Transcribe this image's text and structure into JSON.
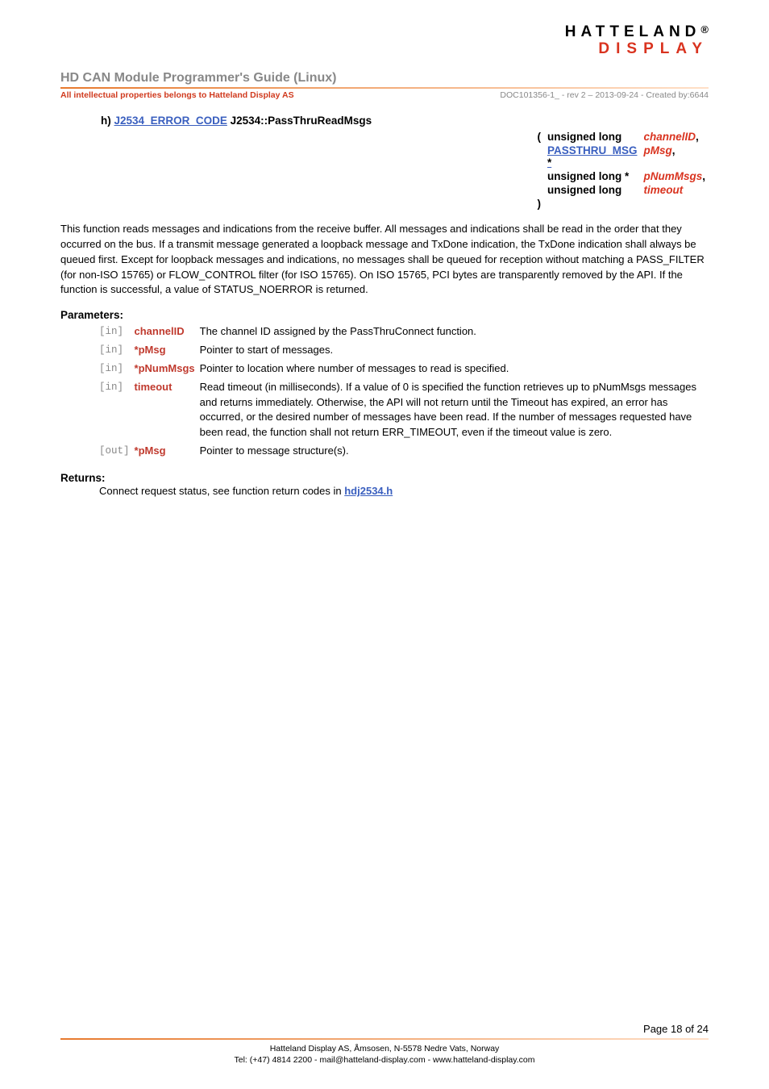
{
  "logo": {
    "line1": "HATTELAND",
    "reg": "®",
    "line2": "DISPLAY",
    "line2_color": "#d9331f"
  },
  "header": {
    "title": "HD CAN Module Programmer's Guide (Linux)",
    "title_color": "#888888",
    "sub_left": "All intellectual properties  belongs to Hatteland Display AS",
    "sub_left_color": "#d03a1e",
    "sub_right": "DOC101356-1_ - rev 2 – 2013-09-24 - Created by:6644",
    "sub_right_color": "#888888"
  },
  "signature": {
    "bullet": "h)",
    "return_type": "J2534_ERROR_CODE",
    "return_type_color": "#3a5fbf",
    "fn_name": "J2534::PassThruReadMsgs",
    "open": "(",
    "close": ")",
    "rows": [
      {
        "type": "unsigned long",
        "type_link": false,
        "type_color": "#000",
        "arg": "channelID",
        "arg_color": "#d9331f",
        "suffix": ","
      },
      {
        "type": "PASSTHRU_MSG *",
        "type_link": true,
        "type_color": "#3a5fbf",
        "arg": "pMsg",
        "arg_color": "#d9331f",
        "suffix": ","
      },
      {
        "type": "unsigned long *",
        "type_link": false,
        "type_color": "#000",
        "arg": "pNumMsgs",
        "arg_color": "#d9331f",
        "suffix": ","
      },
      {
        "type": "unsigned long",
        "type_link": false,
        "type_color": "#000",
        "arg": "timeout",
        "arg_color": "#d9331f",
        "suffix": ""
      }
    ]
  },
  "description": "This function reads messages and indications from the receive buffer. All messages and indications shall be read in the order that they occurred on the bus. If a transmit message generated a loopback message and TxDone indication, the TxDone indication shall always be queued first. Except for loopback messages and indications, no messages shall be queued for reception without matching a PASS_FILTER (for non-ISO 15765) or FLOW_CONTROL filter (for ISO 15765). On ISO 15765, PCI bytes are transparently removed by the API. If the function is successful, a value of STATUS_NOERROR is returned.",
  "params_heading": "Parameters:",
  "param_name_color": "#c03a2e",
  "params": [
    {
      "dir": "[in]",
      "name": "channelID",
      "desc": "The channel ID assigned by the PassThruConnect function."
    },
    {
      "dir": "[in]",
      "name": "*pMsg",
      "desc": "Pointer to start of messages."
    },
    {
      "dir": "[in]",
      "name": "*pNumMsgs",
      "desc": "Pointer to location where number of messages to read is specified."
    },
    {
      "dir": "[in]",
      "name": "timeout",
      "desc": "Read timeout (in milliseconds). If a value of 0 is specified the function retrieves up to pNumMsgs messages and returns immediately. Otherwise, the API will not return until the Timeout has expired, an error has occurred, or the desired number of messages have been read. If the number of messages requested have been read, the function shall not return ERR_TIMEOUT, even if the timeout value is zero."
    },
    {
      "dir": "[out]",
      "name": "*pMsg",
      "desc": "Pointer to message structure(s)."
    }
  ],
  "returns_heading": "Returns:",
  "returns_text": "Connect request status, see function return codes in ",
  "returns_link": "hdj2534.h",
  "returns_link_color": "#3a5fbf",
  "footer": {
    "page": "Page 18 of 24",
    "line1": "Hatteland Display AS, Åmsosen, N-5578 Nedre Vats, Norway",
    "line2": "Tel: (+47) 4814 2200 - mail@hatteland-display.com - www.hatteland-display.com"
  }
}
